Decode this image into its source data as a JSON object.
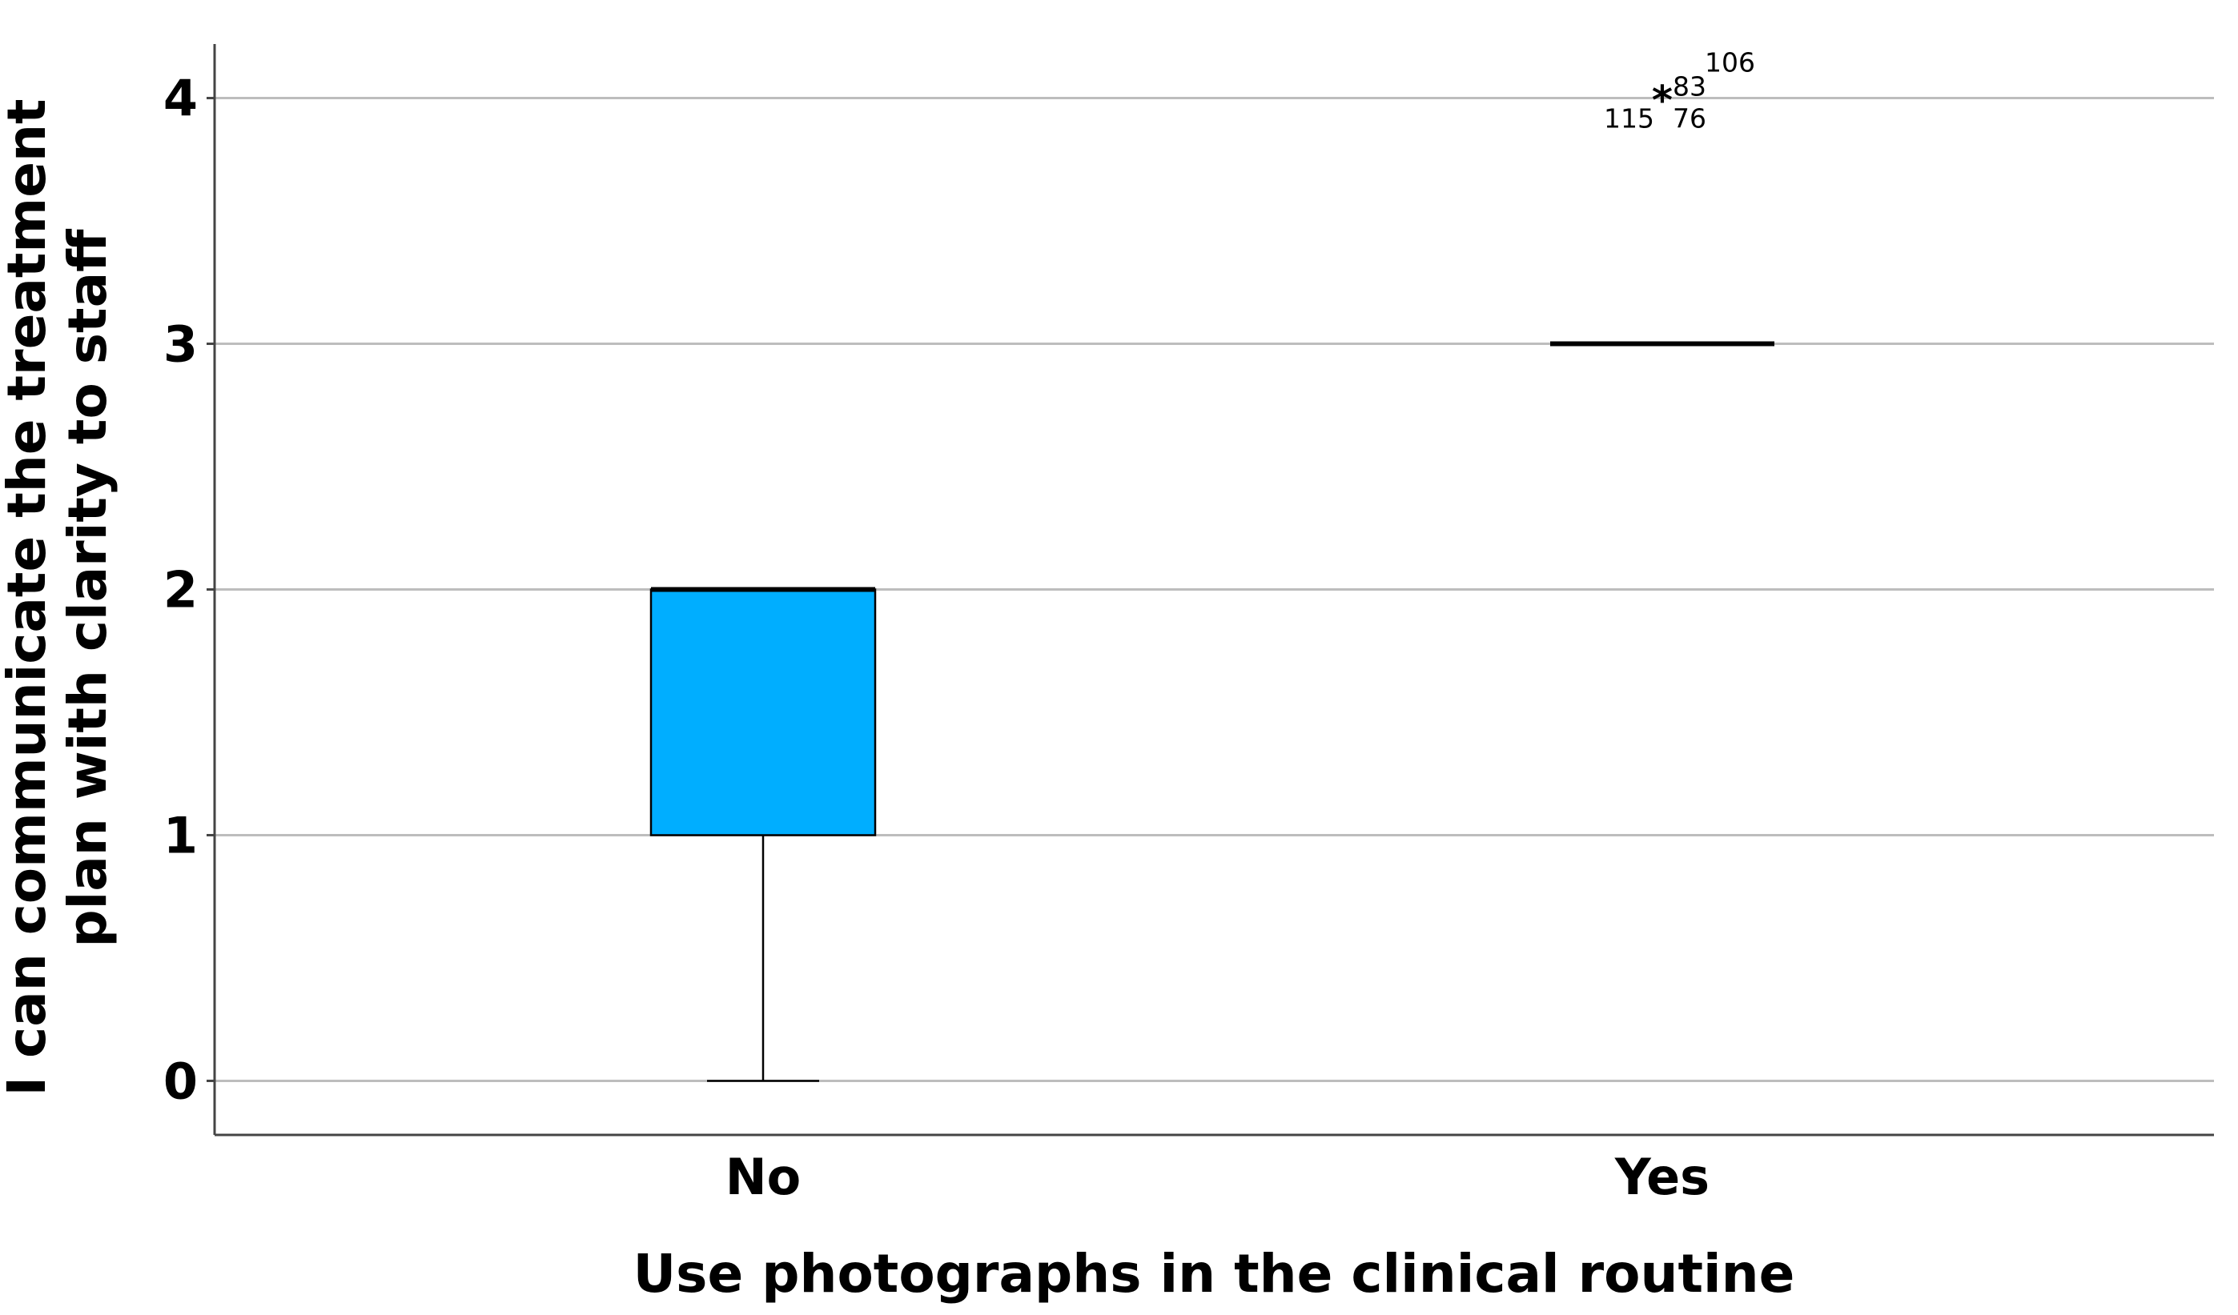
{
  "chart_data": {
    "type": "boxplot",
    "xlabel": "Use photographs in the clinical routine",
    "ylabel_lines": [
      "I can communicate the treatment",
      "plan with clarity to staff"
    ],
    "ylim": [
      -0.22,
      4.22
    ],
    "yticks": [
      0,
      1,
      2,
      3,
      4
    ],
    "grid": true,
    "categories": [
      "No",
      "Yes"
    ],
    "box_color": "#00aeff",
    "boxes": [
      {
        "category": "No",
        "whisker_low": 0,
        "q1": 1,
        "median": 2,
        "q3": 2,
        "whisker_high": 2,
        "outliers": []
      },
      {
        "category": "Yes",
        "whisker_low": 3,
        "q1": 3,
        "median": 3,
        "q3": 3,
        "whisker_high": 3,
        "outliers": [
          {
            "value": 4,
            "marker": "*",
            "labels": [
              "106",
              "83",
              "115",
              "76"
            ]
          }
        ]
      }
    ]
  }
}
